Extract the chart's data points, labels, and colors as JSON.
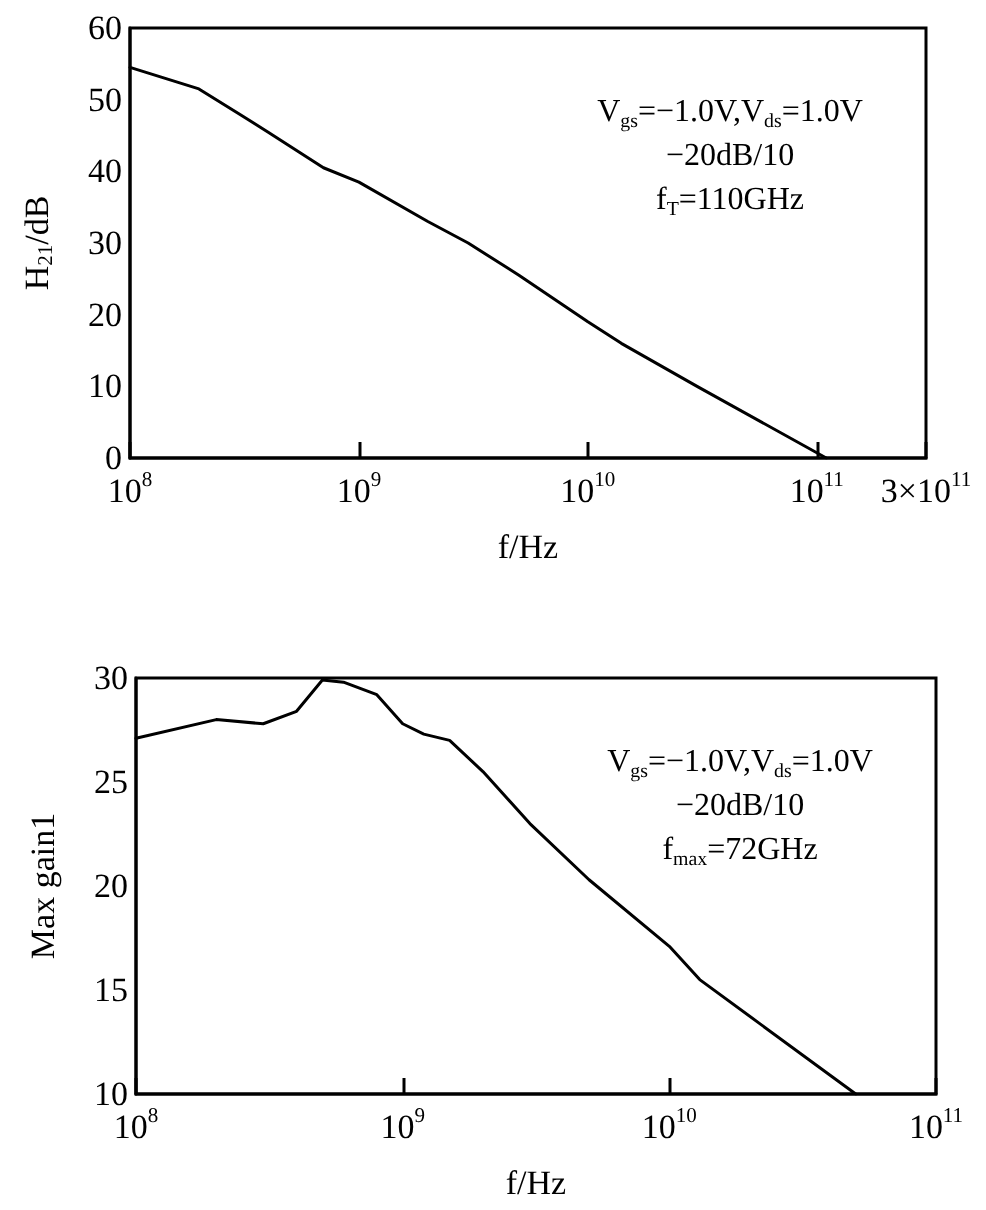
{
  "chart_data": [
    {
      "type": "line",
      "xlabel": "f/Hz",
      "ylabel": "H$_{21}$/dB",
      "log": "x",
      "grid": false,
      "marker": "none",
      "line_style": "solid",
      "xlim": [
        100000000,
        300000000000
      ],
      "xticks": [
        {
          "value": 100000000,
          "label": "10$^{8}$"
        },
        {
          "value": 1000000000,
          "label": "10$^{9}$"
        },
        {
          "value": 10000000000,
          "label": "10$^{10}$"
        },
        {
          "value": 100000000000,
          "label": "10$^{11}$"
        },
        {
          "value": 300000000000,
          "label": "3×10$^{11}$"
        }
      ],
      "ylim": [
        0,
        60
      ],
      "yticks": [
        0,
        10,
        20,
        30,
        40,
        50,
        60
      ],
      "annotations": [
        "V$_{gs}$=−1.0V,V$_{ds}$=1.0V",
        "−20dB/10",
        "f$_{T}$=110GHz"
      ],
      "series": [
        {
          "color": "#000000",
          "x": [
            100000000,
            200000000,
            300000000,
            400000000,
            700000000,
            1000000000,
            2000000000,
            3000000000,
            5000000000,
            10000000000,
            14000000000,
            30000000000,
            110000000000
          ],
          "values": [
            54.5,
            51.5,
            48,
            45.5,
            40.5,
            38.5,
            33,
            30,
            25.5,
            19,
            16,
            10,
            0
          ]
        }
      ]
    },
    {
      "type": "line",
      "xlabel": "f/Hz",
      "ylabel": "Max gain1",
      "log": "x",
      "grid": false,
      "marker": "none",
      "line_style": "solid",
      "xlim": [
        100000000,
        100000000000
      ],
      "xticks": [
        {
          "value": 100000000,
          "label": "10$^{8}$"
        },
        {
          "value": 1000000000,
          "label": "10$^{9}$"
        },
        {
          "value": 10000000000,
          "label": "10$^{10}$"
        },
        {
          "value": 100000000000,
          "label": "10$^{11}$"
        }
      ],
      "ylim": [
        10,
        30
      ],
      "yticks": [
        10,
        15,
        20,
        25,
        30
      ],
      "annotations": [
        "V$_{gs}$=−1.0V,V$_{ds}$=1.0V",
        "−20dB/10",
        "f$_{max}$=72GHz"
      ],
      "series": [
        {
          "color": "#000000",
          "x": [
            100000000,
            200000000,
            300000000,
            400000000,
            500000000,
            600000000,
            800000000,
            1000000000,
            1200000000,
            1500000000,
            2000000000,
            3000000000,
            5000000000,
            10000000000,
            13000000000,
            50000000000
          ],
          "values": [
            27.1,
            28,
            27.8,
            28.4,
            29.9,
            29.8,
            29.2,
            27.8,
            27.3,
            27,
            25.5,
            23,
            20.3,
            17.1,
            15.5,
            10
          ]
        }
      ]
    }
  ]
}
